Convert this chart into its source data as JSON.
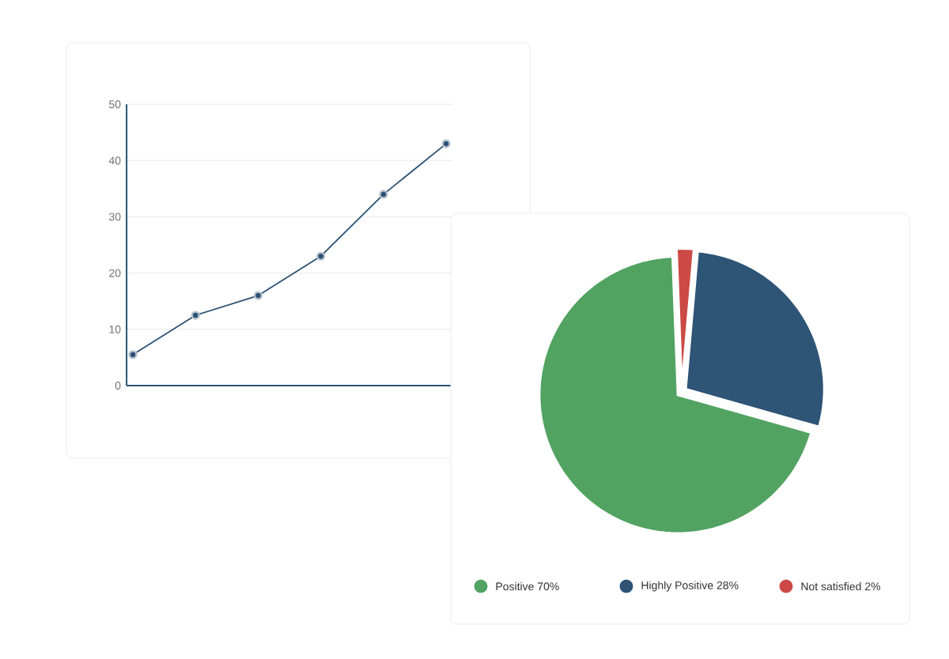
{
  "chart_data": [
    {
      "type": "line",
      "categories": [
        null,
        null,
        null,
        null,
        null,
        null
      ],
      "values": [
        5.5,
        12.5,
        16,
        23,
        34,
        43
      ],
      "color": "#2d5173",
      "ylim": [
        0,
        50
      ],
      "yticks": [
        0,
        10,
        20,
        30,
        40,
        50
      ],
      "grid": "y",
      "marker": "circle",
      "tick_labels": "y"
    },
    {
      "type": "pie",
      "categories": [
        "Positive 70%",
        "Highly Positive 28%",
        "Not satisfied 2%"
      ],
      "values": [
        70,
        28,
        2
      ],
      "colors": [
        "#52a362",
        "#2e5476",
        "#cc4a45"
      ],
      "legend": "bottom"
    }
  ]
}
